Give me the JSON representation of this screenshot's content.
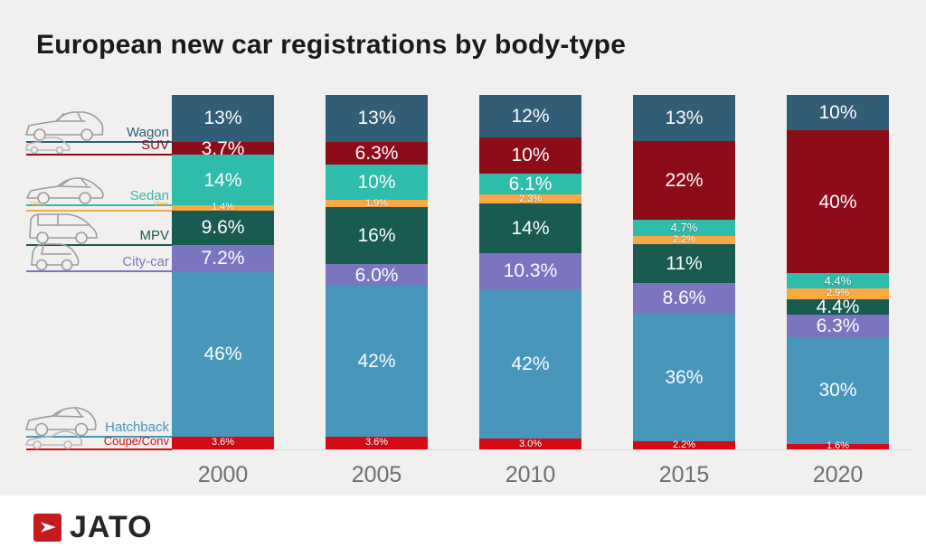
{
  "title": "European new car registrations by body-type",
  "chart_data": {
    "type": "bar",
    "stacked": true,
    "title": "European new car registrations by body-type",
    "xlabel": "",
    "ylabel": "",
    "value_unit": "%",
    "ylim": [
      0,
      100
    ],
    "grid": false,
    "legend_position": "left",
    "categories": [
      "2000",
      "2005",
      "2010",
      "2015",
      "2020"
    ],
    "series": [
      {
        "name": "Wagon",
        "color": "#315d77",
        "values": [
          13,
          13,
          12,
          13,
          10
        ],
        "labels": [
          "13%",
          "13%",
          "12%",
          "13%",
          "10%"
        ],
        "label_sizes": [
          "lg",
          "lg",
          "lg",
          "lg",
          "lg"
        ]
      },
      {
        "name": "SUV",
        "color": "#8c0d19",
        "values": [
          3.7,
          6.3,
          10,
          22,
          40
        ],
        "labels": [
          "3.7%",
          "6.3%",
          "10%",
          "22%",
          "40%"
        ],
        "label_sizes": [
          "lg",
          "lg",
          "lg",
          "lg",
          "lg"
        ]
      },
      {
        "name": "Sedan",
        "color": "#2ebcab",
        "values": [
          14,
          10,
          6.1,
          4.7,
          4.4
        ],
        "labels": [
          "14%",
          "10%",
          "6.1%",
          "4.7%",
          "4.4%"
        ],
        "label_sizes": [
          "lg",
          "lg",
          "lg",
          "md",
          "md"
        ]
      },
      {
        "name": "Vans",
        "color": "#f9a943",
        "values": [
          1.4,
          1.9,
          2.3,
          2.2,
          2.9
        ],
        "labels": [
          "1.4%",
          "1.9%",
          "2.3%",
          "2.2%",
          "2.9%"
        ],
        "label_sizes": [
          "sm",
          "sm",
          "sm",
          "sm",
          "sm"
        ]
      },
      {
        "name": "MPV",
        "color": "#195a51",
        "values": [
          9.6,
          16,
          14,
          11,
          4.4
        ],
        "labels": [
          "9.6%",
          "16%",
          "14%",
          "11%",
          "4.4%"
        ],
        "label_sizes": [
          "lg",
          "lg",
          "lg",
          "lg",
          "lg"
        ]
      },
      {
        "name": "City-car",
        "color": "#7b75c1",
        "values": [
          7.2,
          6.0,
          10.3,
          8.6,
          6.3
        ],
        "labels": [
          "7.2%",
          "6.0%",
          "10.3%",
          "8.6%",
          "6.3%"
        ],
        "label_sizes": [
          "lg",
          "lg",
          "lg",
          "lg",
          "lg"
        ]
      },
      {
        "name": "Hatchback",
        "color": "#4897bb",
        "values": [
          46,
          42,
          42,
          36,
          30
        ],
        "labels": [
          "46%",
          "42%",
          "42%",
          "36%",
          "30%"
        ],
        "label_sizes": [
          "lg",
          "lg",
          "lg",
          "lg",
          "lg"
        ]
      },
      {
        "name": "Coupe/Conv",
        "color": "#d50a14",
        "values": [
          3.6,
          3.6,
          3.0,
          2.2,
          1.6
        ],
        "labels": [
          "3.6%",
          "3.6%",
          "3.0%",
          "2.2%",
          "1.6%"
        ],
        "label_sizes": [
          "sm",
          "sm",
          "sm",
          "sm",
          "sm"
        ]
      }
    ]
  },
  "legend": [
    {
      "label": "Wagon",
      "series": "Wagon",
      "icon": "wagon-car-icon",
      "size": 15
    },
    {
      "label": "SUV",
      "series": "SUV",
      "icon": "suv-car-icon",
      "size": 15
    },
    {
      "label": "Sedan",
      "series": "Sedan",
      "icon": "sedan-car-icon",
      "size": 15
    },
    {
      "label": "Vans",
      "series": "Vans",
      "icon": null,
      "size": 8,
      "tiny": true
    },
    {
      "label": "MPV",
      "series": "MPV",
      "icon": "mpv-car-icon",
      "size": 15
    },
    {
      "label": "City-car",
      "series": "City-car",
      "icon": "city-car-icon",
      "size": 15
    },
    {
      "label": "Hatchback",
      "series": "Hatchback",
      "icon": "hatchback-car-icon",
      "size": 15
    },
    {
      "label": "Coupe/Conv",
      "series": "Coupe/Conv",
      "icon": "coupe-car-icon",
      "size": 13
    }
  ],
  "footer": {
    "brand": "JATO",
    "logo_icon": "jato-arrow-icon"
  },
  "colors": {
    "background": "#f1f0ef",
    "footer_background": "#ffffff",
    "title_text": "#1a1a1a",
    "year_text": "#6f6f6f",
    "axis_line": "#dcdcdc",
    "segment_text": "#fbfdfe",
    "logo_red": "#c51a1e",
    "brand_text": "#262626",
    "icon_stroke": "#9c9c9c",
    "icon_stroke_light": "#b8b8b8"
  }
}
